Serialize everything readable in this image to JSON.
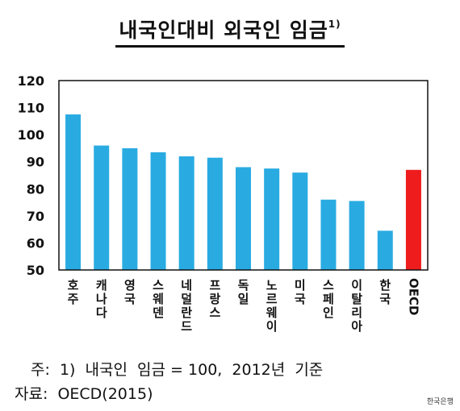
{
  "chart_data": {
    "type": "bar",
    "title": "내국인대비 외국인 임금",
    "title_superscript": "1)",
    "categories": [
      "호주",
      "캐나다",
      "영국",
      "스웨덴",
      "네덜란드",
      "프랑스",
      "독일",
      "노르웨이",
      "미국",
      "스페인",
      "이탈리아",
      "한국",
      "OECD"
    ],
    "values": [
      107.5,
      96,
      95,
      93.5,
      92,
      91.5,
      88,
      87.5,
      86,
      76,
      75.5,
      64.5,
      87
    ],
    "highlight_category": "OECD",
    "ylim": [
      50,
      120
    ],
    "yticks": [
      "50",
      "60",
      "70",
      "80",
      "90",
      "100",
      "110",
      "120"
    ],
    "xlabel": "",
    "ylabel": "",
    "grid": false,
    "colors": {
      "bar": "#29abe2",
      "highlight": "#ee1c1c",
      "axis": "#111111"
    }
  },
  "notes": {
    "footnote": "주:  1)  내국인  임금 = 100,  2012년  기준",
    "source": "자료:  OECD(2015)",
    "brand": "한국은행"
  }
}
